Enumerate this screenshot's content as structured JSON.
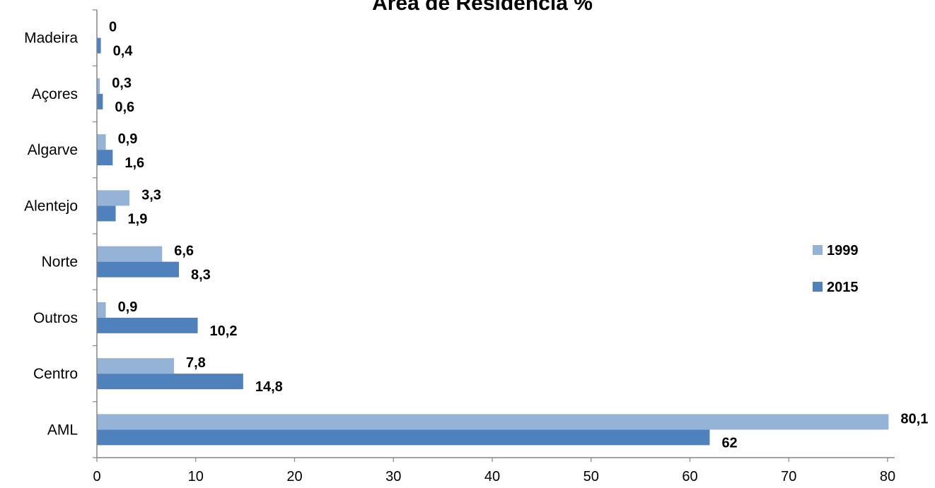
{
  "chart_data": {
    "type": "bar",
    "orientation": "horizontal",
    "title": "Área de Residência %",
    "categories": [
      "AML",
      "Centro",
      "Outros",
      "Norte",
      "Alentejo",
      "Algarve",
      "Açores",
      "Madeira"
    ],
    "series": [
      {
        "name": "1999",
        "color": "#95B3D7",
        "values": [
          80.1,
          7.8,
          0.9,
          6.6,
          3.3,
          0.9,
          0.3,
          0
        ],
        "labels": [
          "80,1",
          "7,8",
          "0,9",
          "6,6",
          "3,3",
          "0,9",
          "0,3",
          "0"
        ]
      },
      {
        "name": "2015",
        "color": "#4F81BD",
        "values": [
          62,
          14.8,
          10.2,
          8.3,
          1.9,
          1.6,
          0.6,
          0.4
        ],
        "labels": [
          "62",
          "14,8",
          "10,2",
          "8,3",
          "1,9",
          "1,6",
          "0,6",
          "0,4"
        ]
      }
    ],
    "xlim": [
      0,
      80
    ],
    "xticks": [
      0,
      10,
      20,
      30,
      40,
      50,
      60,
      70,
      80
    ],
    "grid": false,
    "legend": "right"
  }
}
